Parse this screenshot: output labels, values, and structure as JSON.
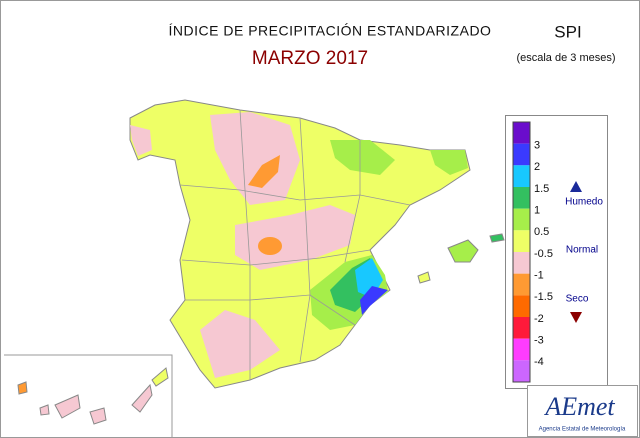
{
  "header": {
    "title": "ÍNDICE DE PRECIPITACIÓN ESTANDARIZADO",
    "subtitle": "MARZO 2017",
    "index": "SPI",
    "scale": "(escala de 3 meses)"
  },
  "legend": {
    "swatches": [
      "#6a0dcc",
      "#3a3aff",
      "#18c8ff",
      "#33c060",
      "#a6ee4a",
      "#eeff66",
      "#f6c8d2",
      "#ff9a33",
      "#ff6a00",
      "#ff1a3a",
      "#ff3cff",
      "#cc66ff"
    ],
    "labels": [
      "3",
      "2",
      "1.5",
      "1",
      "0.5",
      "-0.5",
      "-1",
      "-1.5",
      "-2",
      "-3",
      "-4"
    ],
    "wet": "Humedo",
    "normal": "Normal",
    "dry": "Seco"
  },
  "logo": {
    "name": "AEmet",
    "agency": "Agencia Estatal de Meteorología"
  }
}
